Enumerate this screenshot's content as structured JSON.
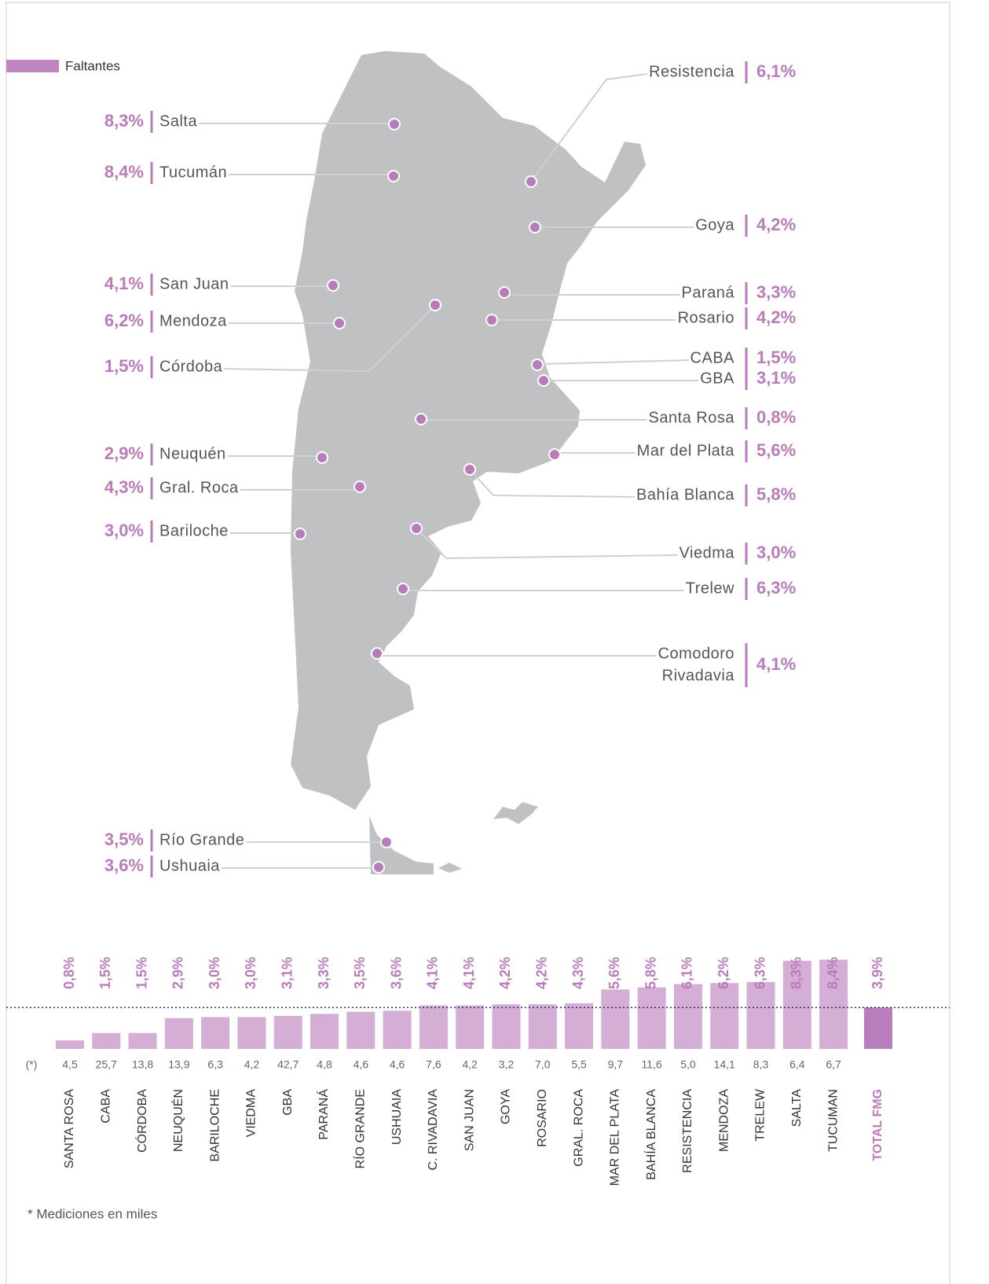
{
  "map": {
    "legend": {
      "name": "Faltantes",
      "color": "#c084c0"
    },
    "cities": [
      {
        "name": "Salta",
        "value": 8.3,
        "value_label": "8,3%"
      },
      {
        "name": "Tucumán",
        "value": 8.4,
        "value_label": "8,4%"
      },
      {
        "name": "San Juan",
        "value": 4.1,
        "value_label": "4,1%"
      },
      {
        "name": "Mendoza",
        "value": 6.2,
        "value_label": "6,2%"
      },
      {
        "name": "Córdoba",
        "value": 1.5,
        "value_label": "1,5%"
      },
      {
        "name": "Neuquén",
        "value": 2.9,
        "value_label": "2,9%"
      },
      {
        "name": "Gral. Roca",
        "value": 4.3,
        "value_label": "4,3%"
      },
      {
        "name": "Bariloche",
        "value": 3.0,
        "value_label": "3,0%"
      },
      {
        "name": "Río Grande",
        "value": 3.5,
        "value_label": "3,5%"
      },
      {
        "name": "Ushuaia",
        "value": 3.6,
        "value_label": "3,6%"
      },
      {
        "name": "Resistencia",
        "value": 6.1,
        "value_label": "6,1%"
      },
      {
        "name": "Goya",
        "value": 4.2,
        "value_label": "4,2%"
      },
      {
        "name": "Paraná",
        "value": 3.3,
        "value_label": "3,3%"
      },
      {
        "name": "Rosario",
        "value": 4.2,
        "value_label": "4,2%"
      },
      {
        "name": "CABA",
        "value": 1.5,
        "value_label": "1,5%"
      },
      {
        "name": "GBA",
        "value": 3.1,
        "value_label": "3,1%"
      },
      {
        "name": "Santa Rosa",
        "value": 0.8,
        "value_label": "0,8%"
      },
      {
        "name": "Mar del Plata",
        "value": 5.6,
        "value_label": "5,6%"
      },
      {
        "name": "Bahía Blanca",
        "value": 5.8,
        "value_label": "5,8%"
      },
      {
        "name": "Viedma",
        "value": 3.0,
        "value_label": "3,0%"
      },
      {
        "name": "Trelew",
        "value": 6.3,
        "value_label": "6,3%"
      },
      {
        "name": [
          "Comodoro",
          "Rivadavia"
        ],
        "value": 4.1,
        "value_label": "4,1%"
      }
    ]
  },
  "chart_data": {
    "type": "bar",
    "color": "#d4aed4",
    "categories": [
      "SANTA ROSA",
      "CABA",
      "CÓRDOBA",
      "NEUQUÉN",
      "BARILOCHE",
      "VIEDMA",
      "GBA",
      "PARANÁ",
      "RÍO GRANDE",
      "USHUAIA",
      "C. RIVADAVIA",
      "SAN JUAN",
      "GOYA",
      "ROSARIO",
      "GRAL. ROCA",
      "MAR DEL PLATA",
      "BAHÍA BLANCA",
      "RESISTENCIA",
      "MENDOZA",
      "TRELEW",
      "SALTA",
      "TUCUMAN"
    ],
    "values": [
      0.8,
      1.5,
      1.5,
      2.9,
      3.0,
      3.0,
      3.1,
      3.3,
      3.5,
      3.6,
      4.1,
      4.1,
      4.2,
      4.2,
      4.3,
      5.6,
      5.8,
      6.1,
      6.2,
      6.3,
      8.3,
      8.4
    ],
    "value_labels": [
      "0,8%",
      "1,5%",
      "1,5%",
      "2,9%",
      "3,0%",
      "3,0%",
      "3,1%",
      "3,3%",
      "3,5%",
      "3,6%",
      "4,1%",
      "4,1%",
      "4,2%",
      "4,2%",
      "4,3%",
      "5,6%",
      "5,8%",
      "6,1%",
      "6,2%",
      "6,3%",
      "8,3%",
      "8,4%"
    ],
    "counts_label": "(*)",
    "counts": [
      "4,5",
      "25,7",
      "13,8",
      "13,9",
      "6,3",
      "4,2",
      "42,7",
      "4,8",
      "4,6",
      "4,6",
      "7,6",
      "4,2",
      "3,2",
      "7,0",
      "5,5",
      "9,7",
      "11,6",
      "5,0",
      "14,1",
      "8,3",
      "6,4",
      "6,7"
    ],
    "total": {
      "name": "TOTAL FMG",
      "value": 3.9,
      "value_label": "3,9%",
      "color": "#b87dbb"
    },
    "footnote": "* Mediciones en miles"
  }
}
